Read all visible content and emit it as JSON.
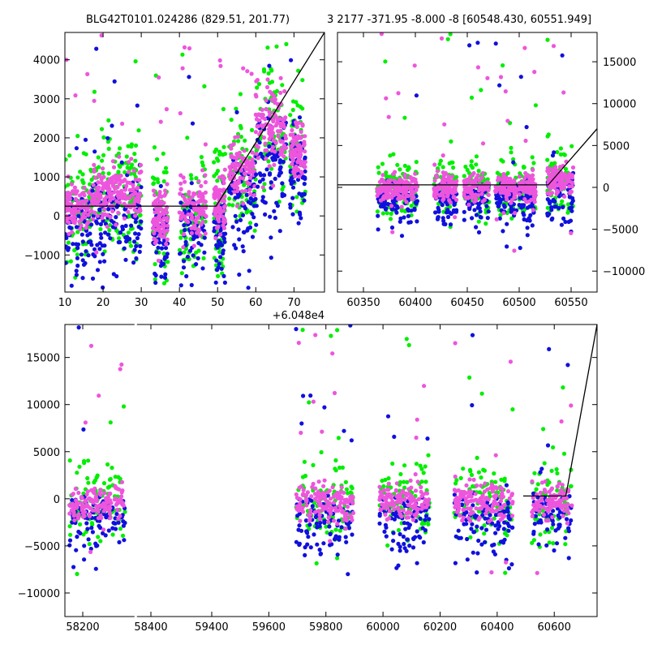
{
  "colors": {
    "green": "#00ee00",
    "blue": "#1010dd",
    "pink": "#ee55dd",
    "line": "#000000"
  },
  "titles": {
    "left": "BLG42T0101.024286 (829.51, 201.77)",
    "right": "3 2177 -371.95 -8.000 -8 [60548.430, 60551.949]"
  },
  "chart_data": [
    {
      "type": "scatter",
      "panel": "top-left",
      "title": "BLG42T0101.024286 (829.51, 201.77)",
      "x_offset_label": "+6.048e4",
      "xlim": [
        10,
        78
      ],
      "ylim": [
        -1950,
        4700
      ],
      "xticks": [
        "10",
        "20",
        "30",
        "40",
        "50",
        "60",
        "70"
      ],
      "yticks": [
        "−1000",
        "0",
        "1000",
        "2000",
        "3000",
        "4000"
      ],
      "series_colors": [
        "green",
        "blue",
        "pink"
      ],
      "clusters": [
        {
          "x": [
            10,
            17
          ],
          "y_center": 200,
          "y_spread": 900
        },
        {
          "x": [
            17,
            30
          ],
          "y_center": 600,
          "y_spread": 1000
        },
        {
          "x": [
            33,
            37
          ],
          "y_center": 0,
          "y_spread": 1100
        },
        {
          "x": [
            40,
            47
          ],
          "y_center": 200,
          "y_spread": 1100
        },
        {
          "x": [
            49,
            52
          ],
          "y_center": 300,
          "y_spread": 1100
        },
        {
          "x": [
            53,
            60
          ],
          "y_center": 1200,
          "y_spread": 1100
        },
        {
          "x": [
            60,
            68
          ],
          "y_center": 2300,
          "y_spread": 1300
        },
        {
          "x": [
            69,
            73
          ],
          "y_center": 1700,
          "y_spread": 1000
        }
      ],
      "model_line": {
        "x": [
          10,
          49.6,
          78
        ],
        "y": [
          250,
          250,
          4700
        ]
      }
    },
    {
      "type": "scatter",
      "panel": "top-right",
      "title": "3 2177 -371.95 -8.000 -8 [60548.430, 60551.949]",
      "xlim": [
        60325,
        60575
      ],
      "ylim": [
        -12500,
        18500
      ],
      "xticks": [
        "60350",
        "60400",
        "60450",
        "60500",
        "60550"
      ],
      "yticks": [
        "−10000",
        "−5000",
        "0",
        "5000",
        "10000",
        "15000"
      ],
      "series_colors": [
        "green",
        "blue",
        "pink"
      ],
      "clusters": [
        {
          "x": [
            60363,
            60402
          ],
          "y_center": 0,
          "y_spread": 2200
        },
        {
          "x": [
            60418,
            60440
          ],
          "y_center": 0,
          "y_spread": 2400
        },
        {
          "x": [
            60447,
            60471
          ],
          "y_center": 0,
          "y_spread": 2200
        },
        {
          "x": [
            60477,
            60498
          ],
          "y_center": 0,
          "y_spread": 2200
        },
        {
          "x": [
            60500,
            60516
          ],
          "y_center": 0,
          "y_spread": 2200
        },
        {
          "x": [
            60527,
            60552
          ],
          "y_center": 800,
          "y_spread": 2800
        }
      ],
      "model_line": {
        "x": [
          60325,
          60528,
          60575
        ],
        "y": [
          300,
          300,
          7000
        ]
      }
    },
    {
      "type": "scatter",
      "panel": "bottom",
      "xlim": [
        58120,
        60675
      ],
      "ylim": [
        -12500,
        18500
      ],
      "axis_break_x": 58460,
      "xticks": [
        "58200",
        "58400",
        "59400",
        "59600",
        "59800",
        "60000",
        "60200",
        "60400",
        "60600"
      ],
      "yticks": [
        "−10000",
        "−5000",
        "0",
        "5000",
        "10000",
        "15000"
      ],
      "series_colors": [
        "green",
        "blue",
        "pink"
      ],
      "clusters": [
        {
          "x": [
            58140,
            58410
          ],
          "y_center": -300,
          "y_spread": 2800
        },
        {
          "x": [
            59230,
            59505
          ],
          "y_center": -400,
          "y_spread": 3000
        },
        {
          "x": [
            59630,
            59870
          ],
          "y_center": -200,
          "y_spread": 2800
        },
        {
          "x": [
            59990,
            60270
          ],
          "y_center": -300,
          "y_spread": 3000
        },
        {
          "x": [
            60360,
            60555
          ],
          "y_center": -200,
          "y_spread": 2800
        }
      ],
      "model_line": {
        "x": [
          60320,
          60525,
          60675
        ],
        "y": [
          300,
          300,
          18500
        ]
      }
    }
  ]
}
